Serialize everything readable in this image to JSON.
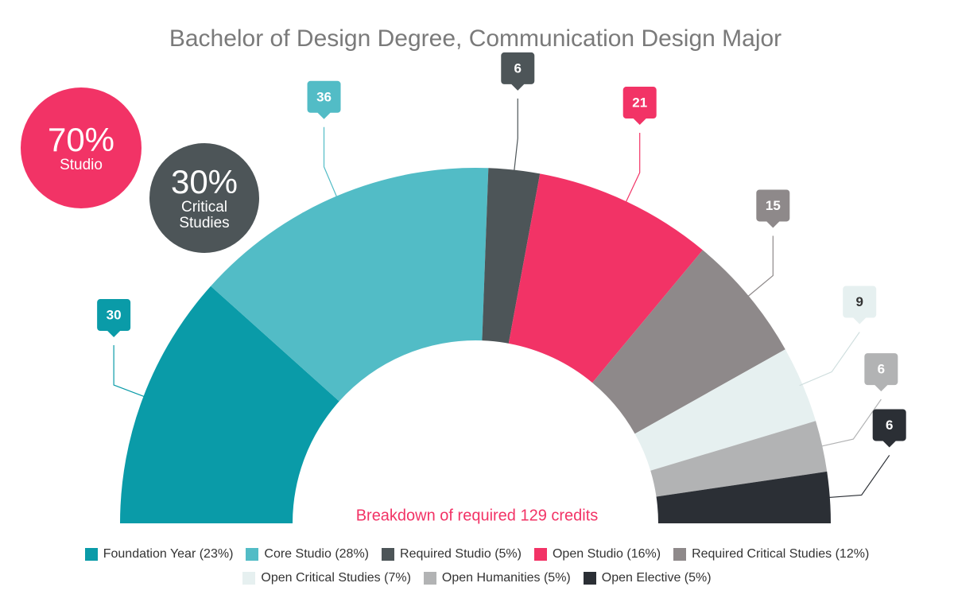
{
  "chart_data": {
    "type": "semi-donut",
    "title": "Bachelor of Design Degree, Communication Design Major",
    "subtitle": "Breakdown of required 129 credits",
    "categories": [
      "Foundation Year (23%)",
      "Core Studio (28%)",
      "Required Studio (5%)",
      "Open Studio (16%)",
      "Required Critical Studies (12%)",
      "Open Critical Studies (7%)",
      "Open Humanities (5%)",
      "Open Elective (5%)"
    ],
    "values": [
      30,
      36,
      6,
      21,
      15,
      9,
      6,
      6
    ],
    "colors": [
      "#0a9ba8",
      "#52bcc6",
      "#4d5558",
      "#f23366",
      "#8e898a",
      "#e6f0f0",
      "#b2b3b4",
      "#2b2f35"
    ],
    "annotations": [
      {
        "text": "70%",
        "label": "Studio",
        "color": "#f23366"
      },
      {
        "text": "30%",
        "label": "Critical Studies",
        "color": "#4d5558"
      }
    ]
  }
}
